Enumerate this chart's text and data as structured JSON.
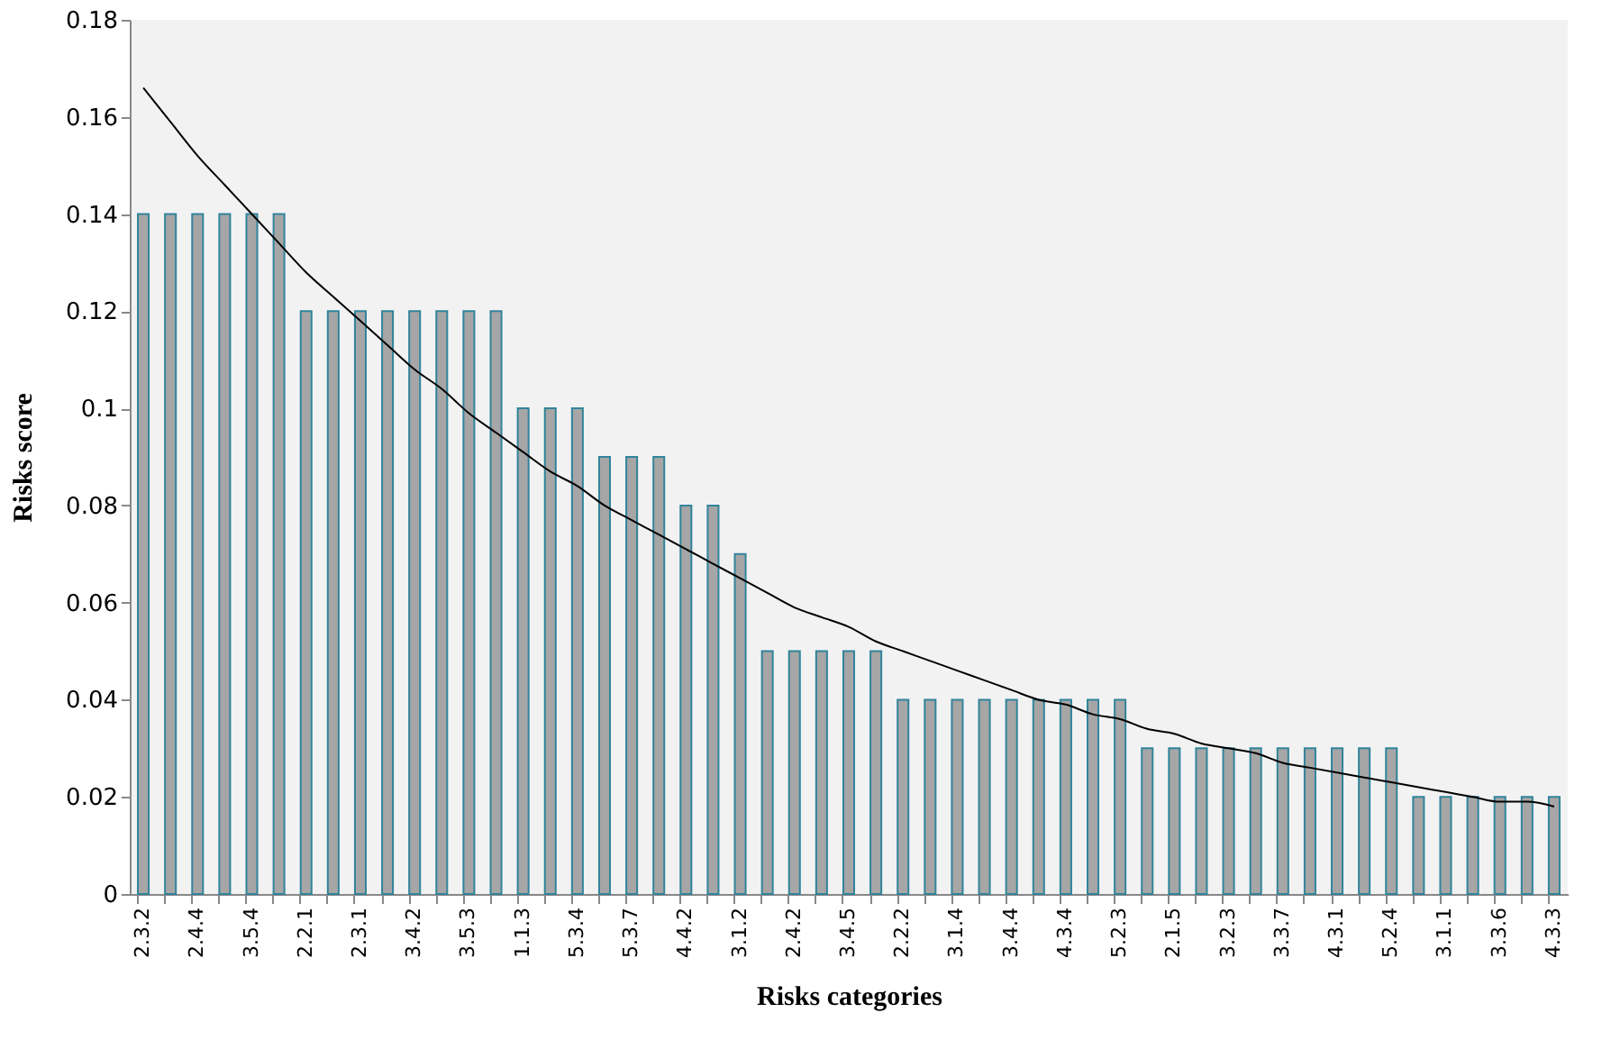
{
  "chart_data": {
    "type": "bar",
    "xlabel": "Risks categories",
    "ylabel": "Risks score",
    "categories": [
      "2.3.2",
      null,
      "2.4.4",
      null,
      "3.5.4",
      null,
      "2.2.1",
      null,
      "2.3.1",
      null,
      "3.4.2",
      null,
      "3.5.3",
      null,
      "1.1.3",
      null,
      "5.3.4",
      null,
      "5.3.7",
      null,
      "4.4.2",
      null,
      "3.1.2",
      null,
      "2.4.2",
      null,
      "3.4.5",
      null,
      "2.2.2",
      null,
      "3.1.4",
      null,
      "3.4.4",
      null,
      "4.3.4",
      null,
      "5.2.3",
      null,
      "2.1.5",
      null,
      "3.2.3",
      null,
      "3.3.7",
      null,
      "4.3.1",
      null,
      "5.2.4",
      null,
      "3.1.1",
      null,
      "3.3.6",
      null,
      "4.3.3"
    ],
    "series": [
      {
        "color": "#a6a6a6",
        "values": [
          0.14,
          0.14,
          0.14,
          0.14,
          0.14,
          0.14,
          0.12,
          0.12,
          0.12,
          0.12,
          0.12,
          0.12,
          0.12,
          0.12,
          0.1,
          0.1,
          0.1,
          0.09,
          0.09,
          0.09,
          0.08,
          0.08,
          0.07,
          0.05,
          0.05,
          0.05,
          0.05,
          0.05,
          0.04,
          0.04,
          0.04,
          0.04,
          0.04,
          0.04,
          0.04,
          0.04,
          0.04,
          0.03,
          0.03,
          0.03,
          0.03,
          0.03,
          0.03,
          0.03,
          0.03,
          0.03,
          0.03,
          0.02,
          0.02,
          0.02,
          0.02,
          0.02,
          0.02
        ]
      },
      {
        "type": "line",
        "color": "#000000",
        "values": [
          0.166,
          0.159,
          0.152,
          0.146,
          0.14,
          0.134,
          0.128,
          0.123,
          0.118,
          0.113,
          0.108,
          0.104,
          0.099,
          0.095,
          0.091,
          0.087,
          0.084,
          0.08,
          0.077,
          0.074,
          0.071,
          0.068,
          0.065,
          0.062,
          0.059,
          0.057,
          0.055,
          0.052,
          0.05,
          0.048,
          0.046,
          0.044,
          0.042,
          0.04,
          0.039,
          0.037,
          0.036,
          0.034,
          0.033,
          0.031,
          0.03,
          0.029,
          0.027,
          0.026,
          0.025,
          0.024,
          0.023,
          0.022,
          0.021,
          0.02,
          0.019,
          0.019,
          0.018
        ]
      }
    ],
    "ylim": [
      0,
      0.18
    ],
    "yticks": [
      0,
      0.02,
      0.04,
      0.06,
      0.08,
      0.1,
      0.12,
      0.14,
      0.16,
      0.18
    ],
    "grid": false
  }
}
